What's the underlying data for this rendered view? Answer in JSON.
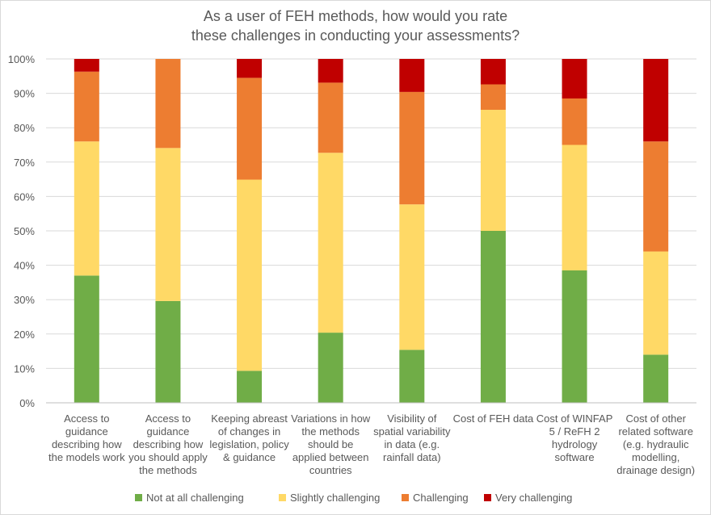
{
  "chart_data": {
    "type": "bar",
    "stacked": true,
    "percent_stacked": true,
    "title_lines": [
      "As a user of FEH methods, how would you rate",
      "these challenges in conducting your assessments?"
    ],
    "y_tick_labels": [
      "0%",
      "10%",
      "20%",
      "30%",
      "40%",
      "50%",
      "60%",
      "70%",
      "80%",
      "90%",
      "100%"
    ],
    "ylim": [
      0,
      100
    ],
    "grid": true,
    "legend_position": "bottom",
    "categories": [
      [
        "Access to",
        "guidance",
        "describing how",
        "the models work"
      ],
      [
        "Access to",
        "guidance",
        "describing how",
        "you should apply",
        "the methods"
      ],
      [
        "Keeping abreast",
        "of changes in",
        "legislation, policy",
        "& guidance"
      ],
      [
        "Variations in how",
        "the methods",
        "should be",
        "applied between",
        "countries"
      ],
      [
        "Visibility of",
        "spatial variability",
        "in data (e.g.",
        "rainfall data)"
      ],
      [
        "Cost of FEH data"
      ],
      [
        "Cost of WINFAP",
        "5 / ReFH 2",
        "hydrology",
        "software"
      ],
      [
        "Cost of other",
        "related software",
        "(e.g. hydraulic",
        "modelling,",
        "drainage design)"
      ]
    ],
    "series": [
      {
        "name": "Not at all challenging",
        "color": "#70ad47",
        "values": [
          37,
          29.6,
          9.3,
          20.4,
          15.4,
          50,
          38.5,
          14
        ]
      },
      {
        "name": "Slightly challenging",
        "color": "#ffd966",
        "values": [
          39,
          44.5,
          55.6,
          52.3,
          42.3,
          35.2,
          36.5,
          30
        ]
      },
      {
        "name": "Challenging",
        "color": "#ed7d31",
        "values": [
          20.3,
          25.9,
          29.6,
          20.4,
          32.7,
          7.4,
          13.5,
          32
        ]
      },
      {
        "name": "Very challenging",
        "color": "#c00000",
        "values": [
          3.7,
          0,
          5.5,
          6.9,
          9.6,
          7.4,
          11.5,
          24
        ]
      }
    ]
  }
}
